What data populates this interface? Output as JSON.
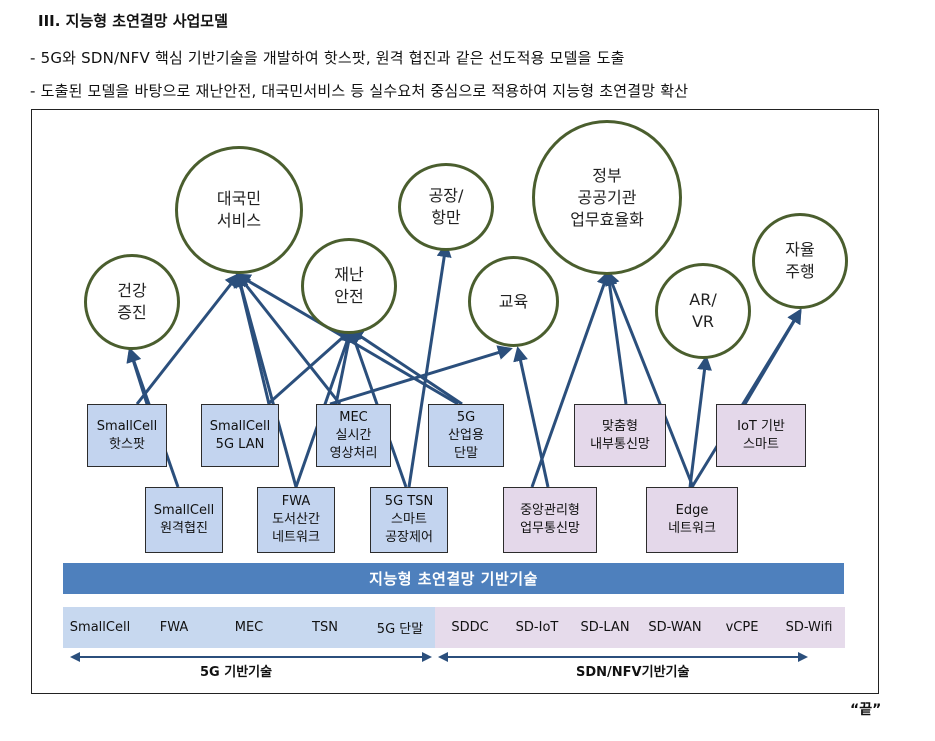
{
  "heading": "III. 지능형 초연결망 사업모델",
  "bullets": [
    "- 5G와 SDN/NFV 핵심 기반기술을 개발하여 핫스팟, 원격 협진과 같은 선도적용 모델을 도출",
    "- 도출된 모델을 바탕으로 재난안전, 대국민서비스 등 실수요처 중심으로 적용하여 지능형 초연결망 확산"
  ],
  "services": {
    "health": "건강\n증진",
    "public": "대국민\n서비스",
    "disaster": "재난\n안전",
    "factory": "공장/\n항만",
    "education": "교육",
    "government": "정부\n공공기관\n업무효율화",
    "arvr": "AR/\nVR",
    "autonomous": "자율\n주행"
  },
  "models": {
    "smallcell_hotspot": "SmallCell\n핫스팟",
    "smallcell_5glan": "SmallCell\n5G LAN",
    "mec_video": "MEC\n실시간\n영상처리",
    "5g_terminal": "5G\n산업용\n단말",
    "custom_internal": "맞춤형\n내부통신망",
    "iot_smart": "IoT 기반\n스마트",
    "smallcell_remote": "SmallCell\n원격협진",
    "fwa_remote": "FWA\n도서산간\n네트워크",
    "tsn_factory": "5G TSN\n스마트\n공장제어",
    "central_mgmt": "중앙관리형\n업무통신망",
    "edge_network": "Edge\n네트워크"
  },
  "banner": "지능형 초연결망 기반기술",
  "tech_5g": [
    "SmallCell",
    "FWA",
    "MEC",
    "TSN",
    "5G 단말"
  ],
  "tech_sdn": [
    "SDDC",
    "SD-IoT",
    "SD-LAN",
    "SD-WAN",
    "vCPE",
    "SD-Wifi"
  ],
  "label_5g": "5G 기반기술",
  "label_sdn": "SDN/NFV기반기술",
  "end_mark": "“끝”",
  "colors": {
    "circle_border": "#4a5e2e",
    "arrow": "#2b4f7c",
    "box_blue": "#c3d4ef",
    "box_pink": "#e4d8ea",
    "banner": "#4e80bd"
  }
}
